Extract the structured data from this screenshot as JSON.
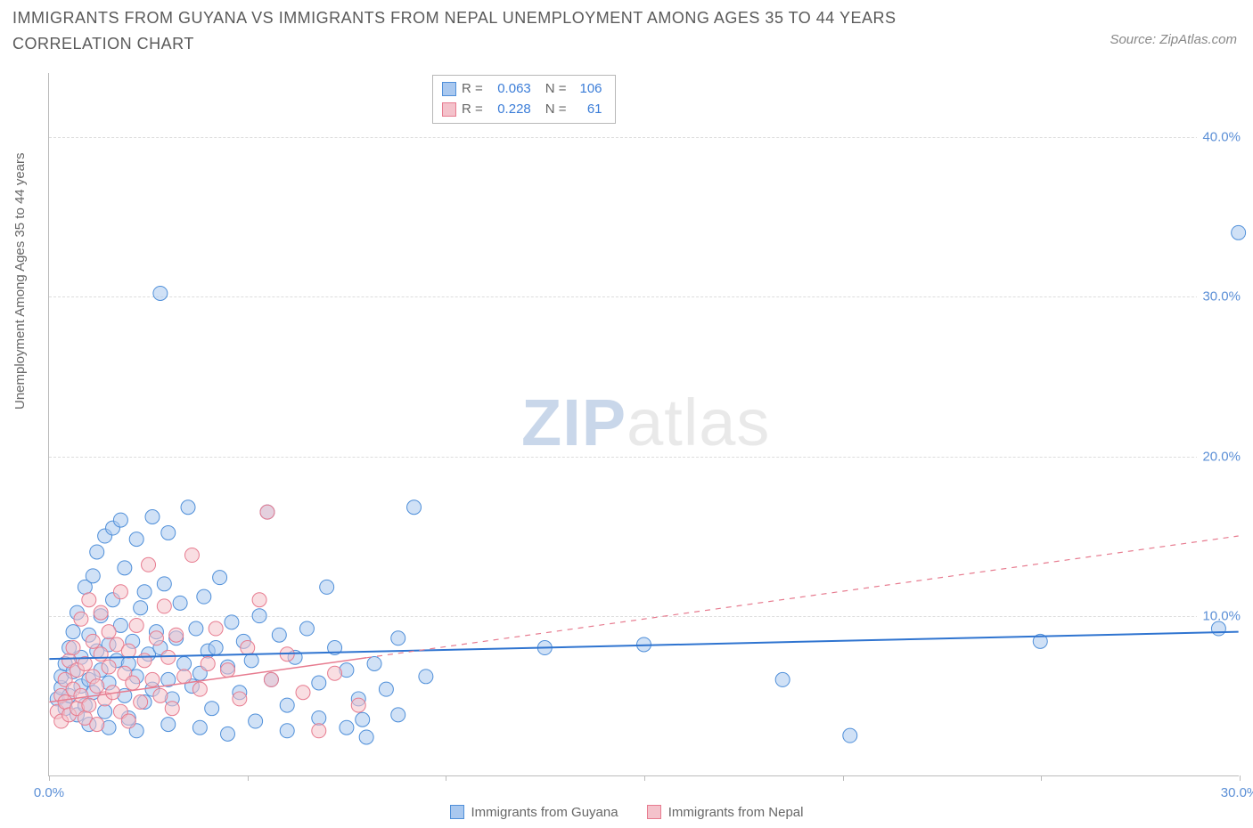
{
  "title": "IMMIGRANTS FROM GUYANA VS IMMIGRANTS FROM NEPAL UNEMPLOYMENT AMONG AGES 35 TO 44 YEARS CORRELATION CHART",
  "source": "Source: ZipAtlas.com",
  "ylabel": "Unemployment Among Ages 35 to 44 years",
  "watermark1": "ZIP",
  "watermark2": "atlas",
  "chart": {
    "type": "scatter",
    "xlim": [
      0,
      30
    ],
    "ylim": [
      0,
      44
    ],
    "xtick_values": [
      0,
      5,
      10,
      15,
      20,
      25,
      30
    ],
    "xtick_labels": [
      "0.0%",
      "",
      "",
      "",
      "",
      "",
      "30.0%"
    ],
    "ytick_values": [
      10,
      20,
      30,
      40
    ],
    "ytick_labels": [
      "10.0%",
      "20.0%",
      "30.0%",
      "40.0%"
    ],
    "grid_color": "#dddddd",
    "axis_color": "#bbbbbb",
    "background_color": "#ffffff",
    "marker_radius": 8,
    "marker_opacity": 0.55,
    "label_fontsize": 15,
    "label_color": "#5b8fd6",
    "series": [
      {
        "name": "Immigrants from Guyana",
        "color_fill": "#a9c8ef",
        "color_stroke": "#4f8fd9",
        "trend_color": "#2f74d0",
        "trend_style": "solid",
        "trend_width": 2,
        "trend": {
          "x1": 0,
          "y1": 7.3,
          "x2": 30,
          "y2": 9.0
        },
        "trend_solid_until_x": 30,
        "R": "0.063",
        "N": "106",
        "points": [
          [
            0.2,
            4.8
          ],
          [
            0.3,
            5.5
          ],
          [
            0.3,
            6.2
          ],
          [
            0.4,
            7.0
          ],
          [
            0.4,
            4.2
          ],
          [
            0.5,
            8.0
          ],
          [
            0.5,
            5.0
          ],
          [
            0.6,
            6.5
          ],
          [
            0.6,
            9.0
          ],
          [
            0.7,
            3.8
          ],
          [
            0.7,
            10.2
          ],
          [
            0.8,
            5.6
          ],
          [
            0.8,
            7.4
          ],
          [
            0.9,
            11.8
          ],
          [
            0.9,
            4.4
          ],
          [
            1.0,
            6.0
          ],
          [
            1.0,
            8.8
          ],
          [
            1.1,
            12.5
          ],
          [
            1.1,
            5.2
          ],
          [
            1.2,
            14.0
          ],
          [
            1.2,
            7.8
          ],
          [
            1.3,
            6.6
          ],
          [
            1.3,
            10.0
          ],
          [
            1.4,
            4.0
          ],
          [
            1.4,
            15.0
          ],
          [
            1.5,
            8.2
          ],
          [
            1.5,
            5.8
          ],
          [
            1.6,
            11.0
          ],
          [
            1.6,
            15.5
          ],
          [
            1.7,
            7.2
          ],
          [
            1.8,
            16.0
          ],
          [
            1.8,
            9.4
          ],
          [
            1.9,
            5.0
          ],
          [
            1.9,
            13.0
          ],
          [
            2.0,
            7.0
          ],
          [
            2.0,
            3.6
          ],
          [
            2.1,
            8.4
          ],
          [
            2.2,
            14.8
          ],
          [
            2.2,
            6.2
          ],
          [
            2.3,
            10.5
          ],
          [
            2.4,
            4.6
          ],
          [
            2.4,
            11.5
          ],
          [
            2.5,
            7.6
          ],
          [
            2.6,
            16.2
          ],
          [
            2.6,
            5.4
          ],
          [
            2.7,
            9.0
          ],
          [
            2.8,
            8.0
          ],
          [
            2.9,
            12.0
          ],
          [
            3.0,
            6.0
          ],
          [
            3.0,
            15.2
          ],
          [
            3.1,
            4.8
          ],
          [
            3.2,
            8.6
          ],
          [
            3.3,
            10.8
          ],
          [
            3.4,
            7.0
          ],
          [
            3.5,
            16.8
          ],
          [
            3.6,
            5.6
          ],
          [
            3.7,
            9.2
          ],
          [
            3.8,
            6.4
          ],
          [
            3.9,
            11.2
          ],
          [
            4.0,
            7.8
          ],
          [
            4.1,
            4.2
          ],
          [
            4.2,
            8.0
          ],
          [
            4.3,
            12.4
          ],
          [
            4.5,
            6.8
          ],
          [
            4.6,
            9.6
          ],
          [
            4.8,
            5.2
          ],
          [
            4.9,
            8.4
          ],
          [
            5.1,
            7.2
          ],
          [
            5.3,
            10.0
          ],
          [
            5.5,
            16.5
          ],
          [
            5.6,
            6.0
          ],
          [
            5.8,
            8.8
          ],
          [
            6.0,
            4.4
          ],
          [
            6.2,
            7.4
          ],
          [
            6.5,
            9.2
          ],
          [
            6.8,
            5.8
          ],
          [
            7.0,
            11.8
          ],
          [
            7.2,
            8.0
          ],
          [
            7.5,
            6.6
          ],
          [
            7.8,
            4.8
          ],
          [
            7.9,
            3.5
          ],
          [
            8.2,
            7.0
          ],
          [
            8.5,
            5.4
          ],
          [
            8.8,
            8.6
          ],
          [
            9.2,
            16.8
          ],
          [
            9.5,
            6.2
          ],
          [
            2.8,
            30.2
          ],
          [
            12.5,
            8.0
          ],
          [
            15.0,
            8.2
          ],
          [
            18.5,
            6.0
          ],
          [
            20.2,
            2.5
          ],
          [
            25.0,
            8.4
          ],
          [
            29.5,
            9.2
          ],
          [
            30.0,
            34.0
          ],
          [
            1.0,
            3.2
          ],
          [
            1.5,
            3.0
          ],
          [
            2.2,
            2.8
          ],
          [
            3.0,
            3.2
          ],
          [
            3.8,
            3.0
          ],
          [
            4.5,
            2.6
          ],
          [
            5.2,
            3.4
          ],
          [
            6.0,
            2.8
          ],
          [
            6.8,
            3.6
          ],
          [
            7.5,
            3.0
          ],
          [
            8.0,
            2.4
          ],
          [
            8.8,
            3.8
          ]
        ]
      },
      {
        "name": "Immigrants from Nepal",
        "color_fill": "#f4c2cb",
        "color_stroke": "#e77b8f",
        "trend_color": "#e77b8f",
        "trend_style": "solid-then-dashed",
        "trend_width": 1.5,
        "trend": {
          "x1": 0,
          "y1": 4.6,
          "x2": 30,
          "y2": 15.0
        },
        "trend_solid_until_x": 8,
        "R": "0.228",
        "N": "61",
        "points": [
          [
            0.2,
            4.0
          ],
          [
            0.3,
            5.0
          ],
          [
            0.3,
            3.4
          ],
          [
            0.4,
            6.0
          ],
          [
            0.4,
            4.6
          ],
          [
            0.5,
            7.2
          ],
          [
            0.5,
            3.8
          ],
          [
            0.6,
            5.4
          ],
          [
            0.6,
            8.0
          ],
          [
            0.7,
            4.2
          ],
          [
            0.7,
            6.6
          ],
          [
            0.8,
            9.8
          ],
          [
            0.8,
            5.0
          ],
          [
            0.9,
            3.6
          ],
          [
            0.9,
            7.0
          ],
          [
            1.0,
            11.0
          ],
          [
            1.0,
            4.4
          ],
          [
            1.1,
            6.2
          ],
          [
            1.1,
            8.4
          ],
          [
            1.2,
            5.6
          ],
          [
            1.2,
            3.2
          ],
          [
            1.3,
            10.2
          ],
          [
            1.3,
            7.6
          ],
          [
            1.4,
            4.8
          ],
          [
            1.5,
            6.8
          ],
          [
            1.5,
            9.0
          ],
          [
            1.6,
            5.2
          ],
          [
            1.7,
            8.2
          ],
          [
            1.8,
            4.0
          ],
          [
            1.8,
            11.5
          ],
          [
            1.9,
            6.4
          ],
          [
            2.0,
            7.8
          ],
          [
            2.0,
            3.4
          ],
          [
            2.1,
            5.8
          ],
          [
            2.2,
            9.4
          ],
          [
            2.3,
            4.6
          ],
          [
            2.4,
            7.2
          ],
          [
            2.5,
            13.2
          ],
          [
            2.6,
            6.0
          ],
          [
            2.7,
            8.6
          ],
          [
            2.8,
            5.0
          ],
          [
            2.9,
            10.6
          ],
          [
            3.0,
            7.4
          ],
          [
            3.1,
            4.2
          ],
          [
            3.2,
            8.8
          ],
          [
            3.4,
            6.2
          ],
          [
            3.6,
            13.8
          ],
          [
            3.8,
            5.4
          ],
          [
            4.0,
            7.0
          ],
          [
            4.2,
            9.2
          ],
          [
            4.5,
            6.6
          ],
          [
            4.8,
            4.8
          ],
          [
            5.0,
            8.0
          ],
          [
            5.3,
            11.0
          ],
          [
            5.6,
            6.0
          ],
          [
            5.5,
            16.5
          ],
          [
            6.0,
            7.6
          ],
          [
            6.4,
            5.2
          ],
          [
            6.8,
            2.8
          ],
          [
            7.2,
            6.4
          ],
          [
            7.8,
            4.4
          ]
        ]
      }
    ]
  },
  "legend": {
    "series1": "Immigrants from Guyana",
    "series2": "Immigrants from Nepal"
  },
  "stats_labels": {
    "R": "R =",
    "N": "N ="
  }
}
